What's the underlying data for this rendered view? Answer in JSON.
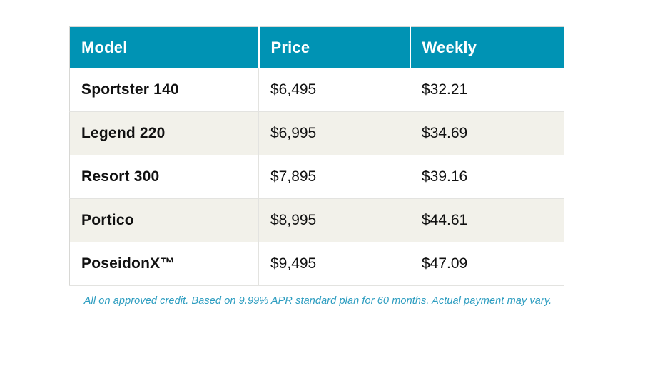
{
  "table": {
    "columns": {
      "model": "Model",
      "price": "Price",
      "weekly": "Weekly"
    },
    "rows": [
      {
        "model": "Sportster 140",
        "price": "$6,495",
        "weekly": "$32.21"
      },
      {
        "model": "Legend 220",
        "price": "$6,995",
        "weekly": "$34.69"
      },
      {
        "model": "Resort 300",
        "price": "$7,895",
        "weekly": "$39.16"
      },
      {
        "model": "Portico",
        "price": "$8,995",
        "weekly": "$44.61"
      },
      {
        "model": "PoseidonX™",
        "price": "$9,495",
        "weekly": "$47.09"
      }
    ]
  },
  "footer": {
    "disclaimer": "All on approved credit. Based on 9.99% APR standard plan for 60 months. Actual payment may vary."
  },
  "colors": {
    "header_bg": "#0093b4",
    "header_text": "#ffffff",
    "row_alt_bg": "#f2f1ea",
    "border": "#e3e3e0",
    "disclaimer_text": "#2d9dc0"
  }
}
